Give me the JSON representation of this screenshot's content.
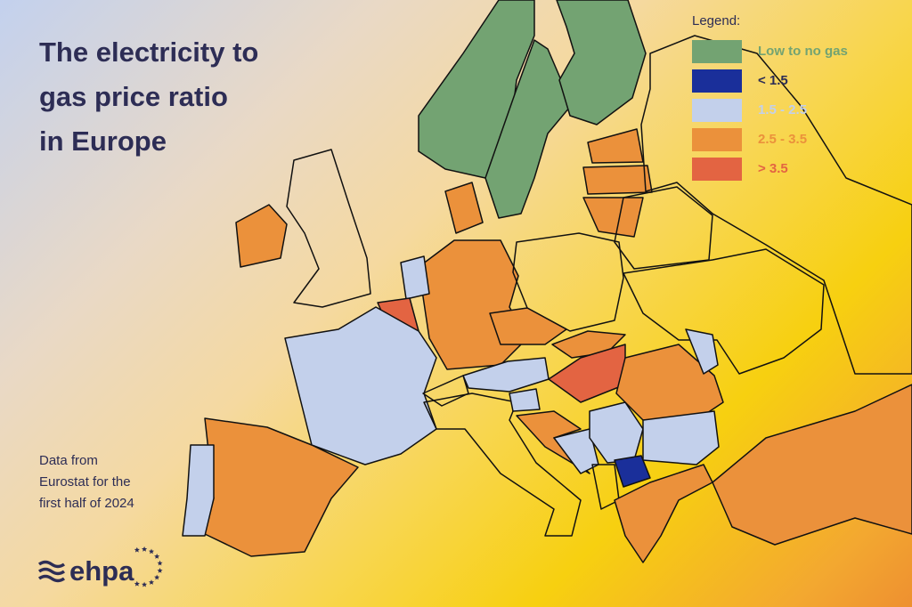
{
  "title": {
    "lines": [
      "The electricity to",
      "gas price ratio",
      "in Europe"
    ]
  },
  "source": "Data from Eurostat for the first half of 2024",
  "logo": {
    "text": "ehpa",
    "icon": "waves-and-stars-logo"
  },
  "legend": {
    "title": "Legend:",
    "items": [
      {
        "key": "none",
        "label": "Low to no gas",
        "color": "#73a372"
      },
      {
        "key": "lt15",
        "label": "< 1.5",
        "color": "#1a2f9a",
        "text_color": "#2d2d55"
      },
      {
        "key": "mid",
        "label": "1.5 - 2.5",
        "color": "#c3d0eb"
      },
      {
        "key": "high",
        "label": "2.5 - 3.5",
        "color": "#eb913b"
      },
      {
        "key": "vhigh",
        "label": "> 3.5",
        "color": "#e36442"
      }
    ]
  },
  "region_categories": [
    "none",
    "none",
    "none",
    "high",
    "high",
    "high",
    "nodata",
    "nodata",
    "nodata",
    "high",
    "high",
    "nodata",
    "high",
    "high",
    "mid",
    "vhigh",
    "mid",
    "high",
    "mid",
    "nodata",
    "high",
    "high",
    "mid",
    "nodata",
    "nodata",
    "mid",
    "high",
    "vhigh",
    "high",
    "mid",
    "mid",
    "mid",
    "mid",
    "lt15",
    "nodata",
    "high"
  ]
}
